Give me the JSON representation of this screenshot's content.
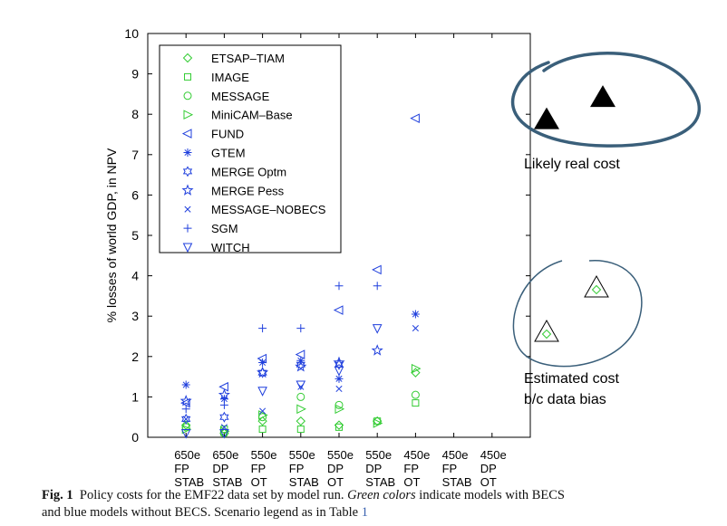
{
  "chart_data": {
    "type": "scatter",
    "ylabel": "% losses of world GDP, in NPV",
    "ylim": [
      0,
      10
    ],
    "yticks": [
      "0",
      "1",
      "2",
      "3",
      "4",
      "5",
      "6",
      "7",
      "8",
      "9",
      "10"
    ],
    "categories": [
      [
        "650e",
        "FP",
        "STAB"
      ],
      [
        "650e",
        "DP",
        "STAB"
      ],
      [
        "550e",
        "FP",
        "OT"
      ],
      [
        "550e",
        "FP",
        "STAB"
      ],
      [
        "550e",
        "DP",
        "OT"
      ],
      [
        "550e",
        "DP",
        "STAB"
      ],
      [
        "450e",
        "FP",
        "OT"
      ],
      [
        "450e",
        "FP",
        "STAB"
      ],
      [
        "450e",
        "DP",
        "OT"
      ]
    ],
    "colors": {
      "becs": "#33cc33",
      "nobecs": "#1f3fdd",
      "annotation": "#3a5f7a"
    },
    "series": [
      {
        "name": "ETSAP–TIAM",
        "marker": "diamond",
        "group": "becs",
        "points": [
          [
            1,
            0.3
          ],
          [
            2,
            0.1
          ],
          [
            3,
            0.4
          ],
          [
            4,
            0.4
          ],
          [
            5,
            0.3
          ],
          [
            6,
            0.4
          ],
          [
            7,
            1.6
          ]
        ]
      },
      {
        "name": "IMAGE",
        "marker": "square",
        "group": "becs",
        "points": [
          [
            2,
            0.2
          ],
          [
            3,
            0.2
          ],
          [
            4,
            0.2
          ],
          [
            5,
            0.25
          ],
          [
            6,
            0.4
          ],
          [
            7,
            0.85
          ]
        ]
      },
      {
        "name": "MESSAGE",
        "marker": "circle",
        "group": "becs",
        "points": [
          [
            1,
            0.25
          ],
          [
            2,
            0.1
          ],
          [
            3,
            0.5
          ],
          [
            4,
            1.0
          ],
          [
            5,
            0.8
          ],
          [
            7,
            1.05
          ]
        ]
      },
      {
        "name": "MiniCAM–Base",
        "marker": "triangle-right",
        "group": "becs",
        "points": [
          [
            1,
            0.2
          ],
          [
            2,
            0.15
          ],
          [
            3,
            0.55
          ],
          [
            4,
            0.7
          ],
          [
            5,
            0.7
          ],
          [
            6,
            0.35
          ],
          [
            7,
            1.7
          ]
        ]
      },
      {
        "name": "FUND",
        "marker": "triangle-left",
        "group": "nobecs",
        "points": [
          [
            1,
            0.85
          ],
          [
            2,
            1.25
          ],
          [
            3,
            1.95
          ],
          [
            4,
            2.05
          ],
          [
            5,
            3.15
          ],
          [
            6,
            4.15
          ],
          [
            7,
            7.9
          ]
        ]
      },
      {
        "name": "GTEM",
        "marker": "asterisk",
        "group": "nobecs",
        "points": [
          [
            1,
            1.3
          ],
          [
            2,
            0.95
          ],
          [
            3,
            1.85
          ],
          [
            4,
            1.9
          ],
          [
            5,
            1.45
          ],
          [
            7,
            3.05
          ]
        ]
      },
      {
        "name": "MERGE Optm",
        "marker": "hexagram",
        "group": "nobecs",
        "points": [
          [
            1,
            0.45
          ],
          [
            2,
            0.5
          ],
          [
            3,
            1.6
          ],
          [
            4,
            1.8
          ],
          [
            5,
            1.8
          ]
        ]
      },
      {
        "name": "MERGE Pess",
        "marker": "star",
        "group": "nobecs",
        "points": [
          [
            1,
            0.9
          ],
          [
            2,
            1.05
          ],
          [
            3,
            1.6
          ],
          [
            4,
            1.75
          ],
          [
            5,
            1.85
          ],
          [
            6,
            2.15
          ]
        ]
      },
      {
        "name": "MESSAGE–NOBECS",
        "marker": "x",
        "group": "nobecs",
        "points": [
          [
            1,
            0.45
          ],
          [
            2,
            0.25
          ],
          [
            3,
            0.65
          ],
          [
            4,
            1.25
          ],
          [
            5,
            1.2
          ],
          [
            7,
            2.7
          ]
        ]
      },
      {
        "name": "SGM",
        "marker": "plus",
        "group": "nobecs",
        "points": [
          [
            1,
            0.7
          ],
          [
            2,
            0.8
          ],
          [
            3,
            2.7
          ],
          [
            4,
            2.7
          ],
          [
            5,
            3.75
          ],
          [
            6,
            3.75
          ]
        ]
      },
      {
        "name": "WITCH",
        "marker": "triangle-down",
        "group": "nobecs",
        "points": [
          [
            1,
            0.1
          ],
          [
            2,
            0.1
          ],
          [
            3,
            1.15
          ],
          [
            4,
            1.3
          ],
          [
            5,
            1.65
          ],
          [
            6,
            2.7
          ]
        ]
      }
    ],
    "annotations": {
      "top_label": "Likely real cost",
      "bottom_label_lines": [
        "Estimated cost",
        "b/c data bias"
      ],
      "top_triangle_values": [
        7.9,
        8.45
      ],
      "bottom_triangle_values": [
        2.6,
        3.7
      ]
    }
  },
  "caption": {
    "label": "Fig. 1",
    "part1": "Policy costs for the EMF22 data set by model run.",
    "part2_italic": "Green colors",
    "part3": "indicate models with BECS",
    "line2_text": "and blue models without BECS. Scenario legend as in Table",
    "line2_ref": "1"
  }
}
